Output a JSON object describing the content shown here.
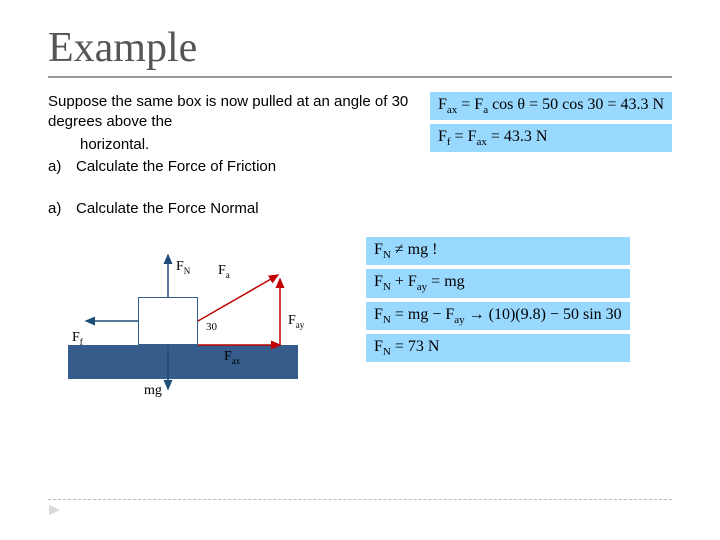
{
  "title": "Example",
  "intro": "Suppose the same box is now pulled at an angle of 30 degrees above the",
  "intro2": "horizontal.",
  "part_a_marker": "a)",
  "part_a_text": "Calculate the Force of Friction",
  "part_b_marker": "a)",
  "part_b_text": "Calculate the Force Normal",
  "eq_a1_html": "F<span class='sub'>ax</span> = F<span class='sub'>a</span> cos θ = 50 cos 30 = 43.3 N",
  "eq_a2_html": "F<span class='sub'>f</span> = F<span class='sub'>ax</span> = 43.3 N",
  "eq_b1_html": "F<span class='sub'>N</span> ≠ mg !",
  "eq_b2_html": "F<span class='sub'>N</span> + F<span class='sub'>ay</span> = mg",
  "eq_b3_html": "F<span class='sub'>N</span> = mg − F<span class='sub'>ay</span> → (10)(9.8) − 50 sin 30",
  "eq_b4_html": "F<span class='sub'>N</span> = 73 N",
  "diagram": {
    "FN": "F<span class='sub'>N</span>",
    "Fa": "F<span class='sub'>a</span>",
    "Ff": "F<span class='sub'>f</span>",
    "Fax": "F<span class='sub'>ax</span>",
    "Fay": "F<span class='sub'>ay</span>",
    "mg": "mg",
    "angle": "30"
  },
  "colors": {
    "highlight": "#99d9ff",
    "box_border": "#355c8a",
    "ground": "#355c8a",
    "arrow_red": "#c00000",
    "arrow_blue": "#1f4e79"
  }
}
